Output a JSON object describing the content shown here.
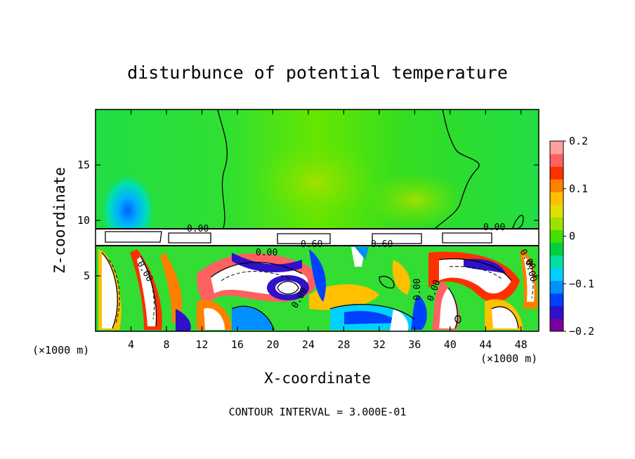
{
  "chart_data": {
    "type": "heatmap",
    "title": "disturbunce of potential temperature",
    "xlabel": "X-coordinate",
    "ylabel": "Z-coordinate",
    "x_unit": "(×1000 m)",
    "x_unit_right": "(×1000 m)",
    "xlim": [
      0,
      50
    ],
    "ylim": [
      0,
      20
    ],
    "x_ticks": [
      4,
      8,
      12,
      16,
      20,
      24,
      28,
      32,
      36,
      40,
      44,
      48
    ],
    "y_ticks": [
      5,
      10,
      15
    ],
    "colorbar": {
      "range": [
        -0.2,
        0.2
      ],
      "tick_values": [
        0.2,
        0.1,
        0,
        -0.1,
        -0.2
      ],
      "tick_labels": [
        "0.2",
        "0.1",
        "0",
        "−0.1",
        "−0.2"
      ],
      "colors": [
        "#7a00a0",
        "#3010c8",
        "#0040ff",
        "#0090ff",
        "#00d0ff",
        "#00e0a0",
        "#00d040",
        "#40e000",
        "#a0e000",
        "#e0e000",
        "#ffc000",
        "#ff8000",
        "#ff3000",
        "#ff6060",
        "#ffa0a0"
      ]
    },
    "contour_labels": [
      "0.00",
      "0.60",
      "0.60",
      "0.00",
      "0.00",
      "0.00",
      "0.00",
      "0.00",
      "0.00",
      "0.00",
      "0.00"
    ],
    "contour_interval_text": "CONTOUR INTERVAL = 3.000E-01"
  }
}
